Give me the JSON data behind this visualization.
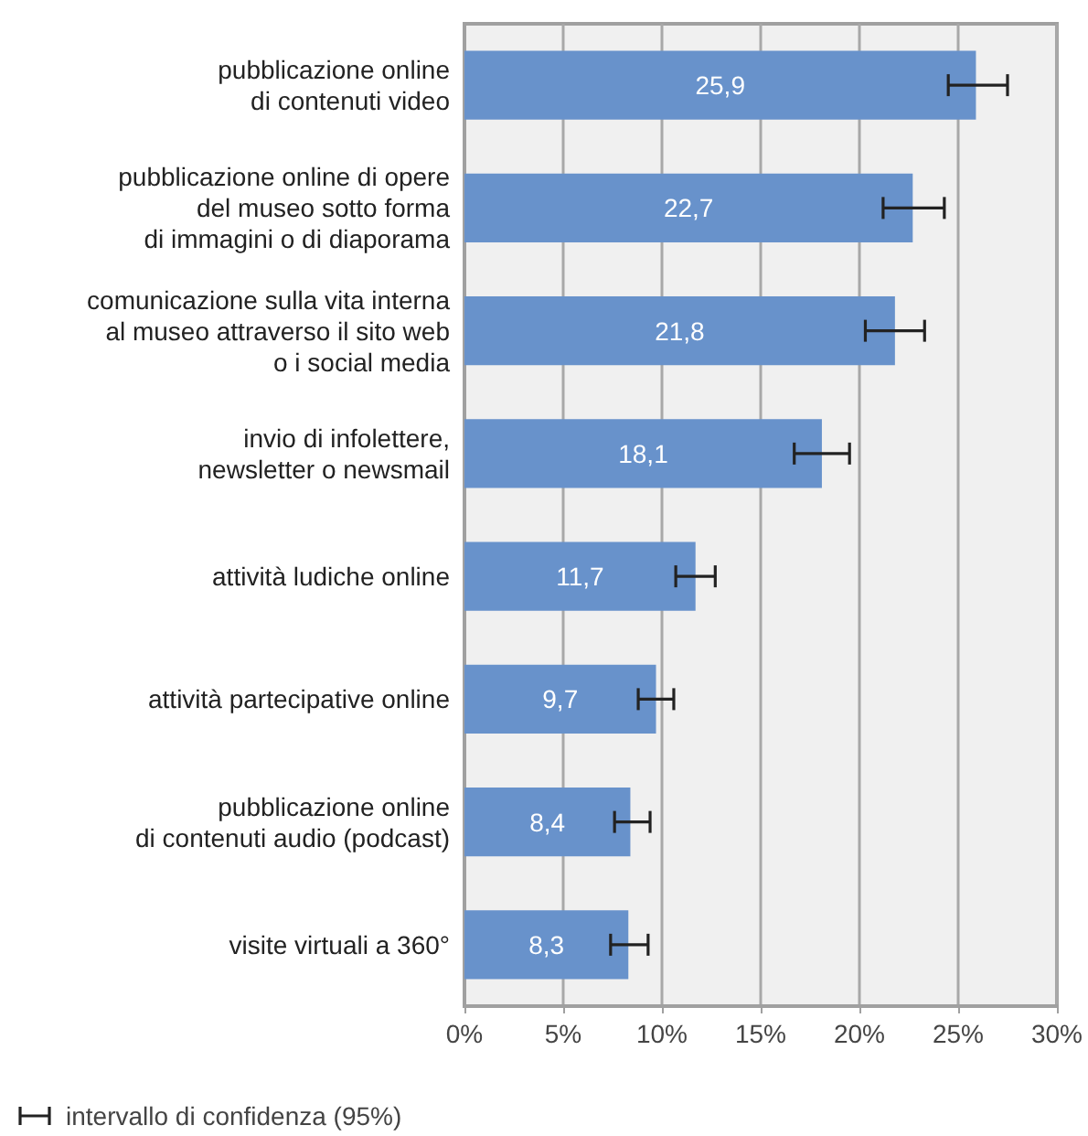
{
  "chart_data": {
    "type": "bar",
    "orientation": "horizontal",
    "categories": [
      "pubblicazione online\ndi contenuti video",
      "pubblicazione online di opere\ndel museo sotto forma\ndi immagini o di diaporama",
      "comunicazione sulla vita interna\nal museo attraverso il sito web\no i social media",
      "invio di infolettere,\nnewsletter o newsmail",
      "attività ludiche online",
      "attività partecipative online",
      "pubblicazione online\ndi contenuti audio (podcast)",
      "visite virtuali a 360°"
    ],
    "values": [
      25.9,
      22.7,
      21.8,
      18.1,
      11.7,
      9.7,
      8.4,
      8.3
    ],
    "value_labels": [
      "25,9",
      "22,7",
      "21,8",
      "18,1",
      "11,7",
      "9,7",
      "8,4",
      "8,3"
    ],
    "errors": [
      [
        24.5,
        27.5
      ],
      [
        21.2,
        24.3
      ],
      [
        20.3,
        23.3
      ],
      [
        16.7,
        19.5
      ],
      [
        10.7,
        12.7
      ],
      [
        8.8,
        10.6
      ],
      [
        7.6,
        9.4
      ],
      [
        7.4,
        9.3
      ]
    ],
    "color": "#6892cb",
    "xlim": [
      0,
      30
    ],
    "xticks": [
      {
        "value": 0,
        "label": "0%"
      },
      {
        "value": 5,
        "label": "5%"
      },
      {
        "value": 10,
        "label": "10%"
      },
      {
        "value": 15,
        "label": "15%"
      },
      {
        "value": 20,
        "label": "20%"
      },
      {
        "value": 25,
        "label": "25%"
      },
      {
        "value": 30,
        "label": "30%"
      }
    ],
    "grid": "x",
    "annotations": [
      "intervallo di confidenza (95%)"
    ]
  }
}
